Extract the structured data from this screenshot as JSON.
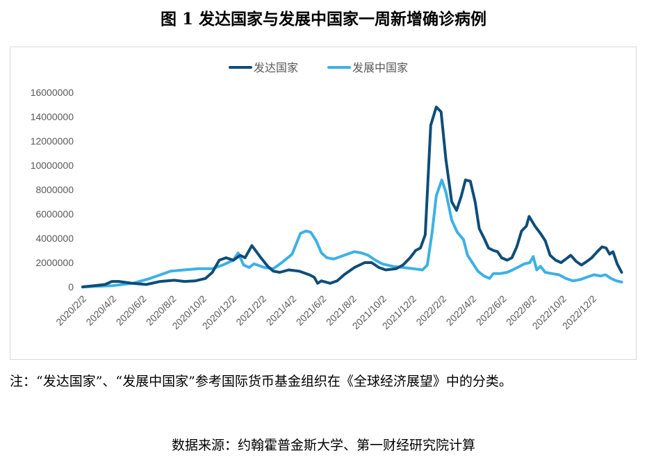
{
  "title": "图 1  发达国家与发展中国家一周新增确诊病例",
  "note": "注：“发达国家”、“发展中国家”参考国际货币基金组织在《全球经济展望》中的分类。",
  "source": "数据来源：约翰霍普金斯大学、第一财经研究院计算",
  "chart_data": {
    "type": "line",
    "title": "",
    "xlabel": "",
    "ylabel": "",
    "x_unit": "weeks since 2020/2/2",
    "x_tick_labels": [
      "2020/2/2",
      "2020/4/2",
      "2020/6/2",
      "2020/8/2",
      "2020/10/2",
      "2020/12/2",
      "2021/2/2",
      "2021/4/2",
      "2021/6/2",
      "2021/8/2",
      "2021/10/2",
      "2021/12/2",
      "2022/2/2",
      "2022/4/2",
      "2022/6/2",
      "2022/8/2",
      "2022/10/2",
      "2022/12/2"
    ],
    "y_tick_labels": [
      "0",
      "2000000",
      "4000000",
      "6000000",
      "8000000",
      "10000000",
      "12000000",
      "14000000",
      "16000000"
    ],
    "ylim": [
      0,
      16000000
    ],
    "xlim": [
      0,
      157
    ],
    "grid": false,
    "legend_position": "top",
    "series": [
      {
        "name": "发达国家",
        "color": "#0e4d78",
        "points": [
          [
            0,
            0
          ],
          [
            6.5,
            0.2
          ],
          [
            8.5,
            0.45
          ],
          [
            10.5,
            0.45
          ],
          [
            14.5,
            0.3
          ],
          [
            18.5,
            0.2
          ],
          [
            22.6,
            0.45
          ],
          [
            26.6,
            0.55
          ],
          [
            29.6,
            0.45
          ],
          [
            32.7,
            0.5
          ],
          [
            35.7,
            0.7
          ],
          [
            37.7,
            1.2
          ],
          [
            39.7,
            2.2
          ],
          [
            41.7,
            2.4
          ],
          [
            43.8,
            2.2
          ],
          [
            45.8,
            2.6
          ],
          [
            47.2,
            2.4
          ],
          [
            49.2,
            3.4
          ],
          [
            51.8,
            2.4
          ],
          [
            53.8,
            1.7
          ],
          [
            55.4,
            1.3
          ],
          [
            57.3,
            1.2
          ],
          [
            59.9,
            1.4
          ],
          [
            62.9,
            1.3
          ],
          [
            65.9,
            1.0
          ],
          [
            67.3,
            0.8
          ],
          [
            68.3,
            0.3
          ],
          [
            69.4,
            0.5
          ],
          [
            72,
            0.3
          ],
          [
            74,
            0.5
          ],
          [
            76,
            1.0
          ],
          [
            79,
            1.6
          ],
          [
            82,
            2.0
          ],
          [
            84,
            2.0
          ],
          [
            86.1,
            1.6
          ],
          [
            88.1,
            1.4
          ],
          [
            91.1,
            1.5
          ],
          [
            93.1,
            1.8
          ],
          [
            95.2,
            2.4
          ],
          [
            96.8,
            3.0
          ],
          [
            98.2,
            3.2
          ],
          [
            99.6,
            4.3
          ],
          [
            101.2,
            13.3
          ],
          [
            102.8,
            14.8
          ],
          [
            104.2,
            14.4
          ],
          [
            105.6,
            10.5
          ],
          [
            107.3,
            7.0
          ],
          [
            108.7,
            6.3
          ],
          [
            110.1,
            7.5
          ],
          [
            111.3,
            8.8
          ],
          [
            112.7,
            8.7
          ],
          [
            114.1,
            7.0
          ],
          [
            115.3,
            4.8
          ],
          [
            116.7,
            4.0
          ],
          [
            118,
            3.2
          ],
          [
            119.4,
            3.0
          ],
          [
            120.6,
            2.9
          ],
          [
            121.8,
            2.4
          ],
          [
            123.4,
            2.2
          ],
          [
            124.8,
            2.4
          ],
          [
            126.2,
            3.3
          ],
          [
            127.6,
            4.6
          ],
          [
            129,
            5.0
          ],
          [
            129.8,
            5.8
          ],
          [
            131.5,
            5.0
          ],
          [
            133.1,
            4.4
          ],
          [
            134.5,
            3.8
          ],
          [
            135.9,
            2.6
          ],
          [
            137.5,
            2.2
          ],
          [
            139.1,
            2.0
          ],
          [
            140.5,
            2.3
          ],
          [
            141.9,
            2.6
          ],
          [
            143.5,
            2.1
          ],
          [
            145,
            1.8
          ],
          [
            146.6,
            2.1
          ],
          [
            148,
            2.4
          ],
          [
            149.6,
            2.9
          ],
          [
            151,
            3.3
          ],
          [
            152.2,
            3.2
          ],
          [
            153.2,
            2.7
          ],
          [
            154.2,
            2.9
          ],
          [
            155.4,
            1.9
          ],
          [
            156.7,
            1.2
          ]
        ]
      },
      {
        "name": "发展中国家",
        "color": "#3db1e4",
        "points": [
          [
            0,
            0
          ],
          [
            8.5,
            0.1
          ],
          [
            14.5,
            0.3
          ],
          [
            19.6,
            0.7
          ],
          [
            23.6,
            1.1
          ],
          [
            25.6,
            1.3
          ],
          [
            29.6,
            1.4
          ],
          [
            33.7,
            1.5
          ],
          [
            37.7,
            1.5
          ],
          [
            40.7,
            1.8
          ],
          [
            43.8,
            2.2
          ],
          [
            45.2,
            2.8
          ],
          [
            46.8,
            1.8
          ],
          [
            48.4,
            1.6
          ],
          [
            49.8,
            1.9
          ],
          [
            52.8,
            1.6
          ],
          [
            55.4,
            1.5
          ],
          [
            57.9,
            2.0
          ],
          [
            60.9,
            2.7
          ],
          [
            63.3,
            4.4
          ],
          [
            64.9,
            4.6
          ],
          [
            66.3,
            4.5
          ],
          [
            67.9,
            3.8
          ],
          [
            69.4,
            2.8
          ],
          [
            71,
            2.4
          ],
          [
            73,
            2.3
          ],
          [
            75,
            2.5
          ],
          [
            77,
            2.7
          ],
          [
            79,
            2.9
          ],
          [
            81,
            2.8
          ],
          [
            83,
            2.6
          ],
          [
            85.1,
            2.2
          ],
          [
            87.1,
            1.9
          ],
          [
            90.1,
            1.7
          ],
          [
            93.1,
            1.6
          ],
          [
            96.2,
            1.5
          ],
          [
            98.8,
            1.4
          ],
          [
            100.2,
            1.8
          ],
          [
            101.6,
            4.5
          ],
          [
            102.8,
            7.5
          ],
          [
            104.4,
            8.8
          ],
          [
            105.6,
            7.8
          ],
          [
            107.3,
            5.5
          ],
          [
            108.9,
            4.5
          ],
          [
            110.7,
            3.9
          ],
          [
            111.9,
            2.6
          ],
          [
            113.3,
            2.0
          ],
          [
            114.9,
            1.3
          ],
          [
            116.7,
            0.9
          ],
          [
            118.3,
            0.7
          ],
          [
            119.4,
            1.1
          ],
          [
            121.4,
            1.1
          ],
          [
            123.4,
            1.2
          ],
          [
            125,
            1.4
          ],
          [
            126.4,
            1.6
          ],
          [
            128.4,
            1.9
          ],
          [
            130,
            2.0
          ],
          [
            131,
            2.5
          ],
          [
            132,
            1.4
          ],
          [
            133.1,
            1.7
          ],
          [
            134.5,
            1.2
          ],
          [
            136.5,
            1.1
          ],
          [
            138.5,
            1.0
          ],
          [
            140.5,
            0.7
          ],
          [
            142.5,
            0.5
          ],
          [
            144.6,
            0.6
          ],
          [
            146.6,
            0.8
          ],
          [
            148.6,
            1.0
          ],
          [
            150.6,
            0.9
          ],
          [
            152,
            1.0
          ],
          [
            153.6,
            0.7
          ],
          [
            155.2,
            0.5
          ],
          [
            156.7,
            0.4
          ]
        ]
      }
    ],
    "value_scale_note": "point y values in millions"
  }
}
